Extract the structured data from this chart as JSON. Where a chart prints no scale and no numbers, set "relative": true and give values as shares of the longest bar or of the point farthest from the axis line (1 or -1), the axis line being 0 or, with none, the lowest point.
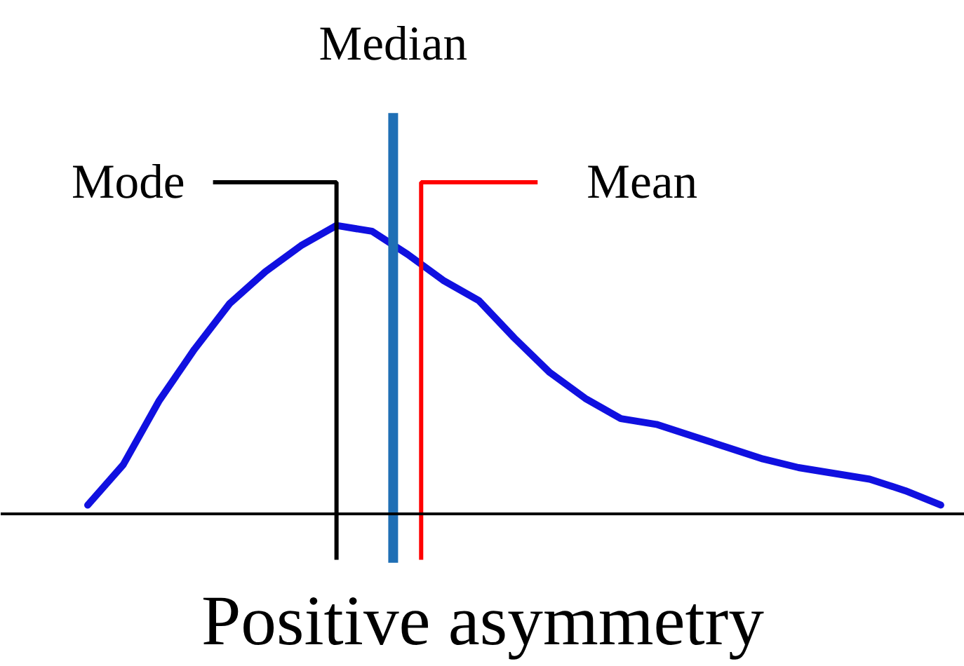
{
  "chart_data": {
    "type": "line",
    "relative": true,
    "title": "Positive asymmetry",
    "categories": [
      null,
      null,
      null,
      null,
      null,
      null,
      null,
      null,
      null,
      null,
      null,
      null,
      null,
      null,
      null,
      null,
      null,
      null,
      null,
      null,
      null,
      null,
      null,
      null,
      null
    ],
    "series": [
      {
        "color": "#1010e0",
        "values": [
          0.03,
          0.17,
          0.39,
          0.57,
          0.73,
          0.84,
          0.93,
          1.0,
          0.98,
          0.9,
          0.81,
          0.74,
          0.61,
          0.49,
          0.4,
          0.33,
          0.31,
          0.27,
          0.23,
          0.19,
          0.16,
          0.14,
          0.12,
          0.08,
          0.03
        ]
      }
    ],
    "annotations": [
      "Mode",
      "Median",
      "Mean"
    ],
    "grid": false,
    "marker": "none",
    "line_style": "solid"
  }
}
